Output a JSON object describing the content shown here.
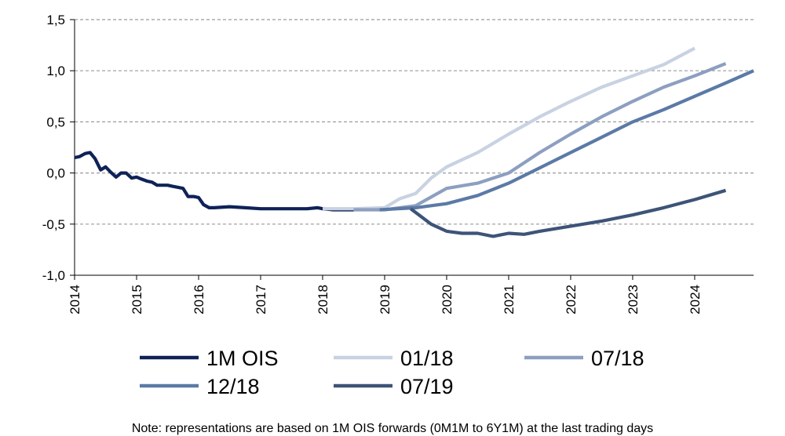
{
  "chart_data": {
    "type": "line",
    "title": "",
    "xlabel": "",
    "ylabel": "",
    "xlim": [
      2014,
      2024.95
    ],
    "ylim": [
      -1.0,
      1.5
    ],
    "y_ticks": [
      1.5,
      1.0,
      0.5,
      0.0,
      -0.5,
      -1.0
    ],
    "y_tick_labels": [
      "1,5",
      "1,0",
      "0,5",
      "0,0",
      "-0,5",
      "-1,0"
    ],
    "x_ticks": [
      2014,
      2015,
      2016,
      2017,
      2018,
      2019,
      2020,
      2021,
      2022,
      2023,
      2024
    ],
    "x_tick_labels": [
      "2014",
      "2015",
      "2016",
      "2017",
      "2018",
      "2019",
      "2020",
      "2021",
      "2022",
      "2023",
      "2024"
    ],
    "grid": "horizontal dashed",
    "legend": "bottom",
    "series": [
      {
        "name": "1M OIS",
        "color": "#0f2258",
        "x": [
          2014.0,
          2014.08,
          2014.17,
          2014.25,
          2014.33,
          2014.42,
          2014.5,
          2014.58,
          2014.67,
          2014.75,
          2014.83,
          2014.92,
          2015.0,
          2015.08,
          2015.17,
          2015.25,
          2015.33,
          2015.42,
          2015.5,
          2015.58,
          2015.67,
          2015.75,
          2015.83,
          2015.92,
          2016.0,
          2016.08,
          2016.17,
          2016.25,
          2016.5,
          2016.75,
          2017.0,
          2017.25,
          2017.5,
          2017.75,
          2017.92,
          2018.0,
          2018.17,
          2018.33,
          2018.5
        ],
        "values": [
          0.15,
          0.16,
          0.19,
          0.2,
          0.14,
          0.03,
          0.06,
          0.01,
          -0.04,
          0.0,
          0.0,
          -0.05,
          -0.04,
          -0.06,
          -0.08,
          -0.09,
          -0.12,
          -0.12,
          -0.12,
          -0.13,
          -0.14,
          -0.15,
          -0.23,
          -0.23,
          -0.24,
          -0.31,
          -0.34,
          -0.34,
          -0.33,
          -0.34,
          -0.35,
          -0.35,
          -0.35,
          -0.35,
          -0.34,
          -0.35,
          -0.36,
          -0.36,
          -0.36
        ]
      },
      {
        "name": "01/18",
        "color": "#c8d2e2",
        "x": [
          2018.0,
          2018.5,
          2019.0,
          2019.25,
          2019.5,
          2019.75,
          2020.0,
          2020.5,
          2021.0,
          2021.5,
          2022.0,
          2022.5,
          2023.0,
          2023.5,
          2024.0
        ],
        "values": [
          -0.35,
          -0.35,
          -0.34,
          -0.25,
          -0.2,
          -0.05,
          0.06,
          0.2,
          0.38,
          0.55,
          0.7,
          0.84,
          0.95,
          1.06,
          1.22
        ]
      },
      {
        "name": "07/18",
        "color": "#8d9fc0",
        "x": [
          2018.5,
          2019.0,
          2019.5,
          2020.0,
          2020.5,
          2021.0,
          2021.5,
          2022.0,
          2022.5,
          2023.0,
          2023.5,
          2024.0,
          2024.5
        ],
        "values": [
          -0.36,
          -0.36,
          -0.32,
          -0.15,
          -0.1,
          0.0,
          0.2,
          0.38,
          0.55,
          0.7,
          0.84,
          0.95,
          1.07
        ]
      },
      {
        "name": "12/18",
        "color": "#5b7aa6",
        "x": [
          2018.92,
          2019.5,
          2020.0,
          2020.5,
          2021.0,
          2021.5,
          2022.0,
          2022.5,
          2023.0,
          2023.5,
          2024.0,
          2024.5,
          2024.95
        ],
        "values": [
          -0.36,
          -0.34,
          -0.3,
          -0.22,
          -0.1,
          0.05,
          0.2,
          0.35,
          0.5,
          0.62,
          0.75,
          0.88,
          1.0
        ]
      },
      {
        "name": "07/19",
        "color": "#3d5478",
        "x": [
          2019.42,
          2019.75,
          2020.0,
          2020.25,
          2020.5,
          2020.75,
          2021.0,
          2021.25,
          2021.5,
          2022.0,
          2022.5,
          2023.0,
          2023.5,
          2024.0,
          2024.5
        ],
        "values": [
          -0.35,
          -0.5,
          -0.57,
          -0.59,
          -0.59,
          -0.62,
          -0.59,
          -0.6,
          -0.57,
          -0.52,
          -0.47,
          -0.41,
          -0.34,
          -0.26,
          -0.17
        ]
      }
    ]
  },
  "footnote": "Note: representations are based on 1M OIS forwards (0M1M to 6Y1M) at the last trading days"
}
